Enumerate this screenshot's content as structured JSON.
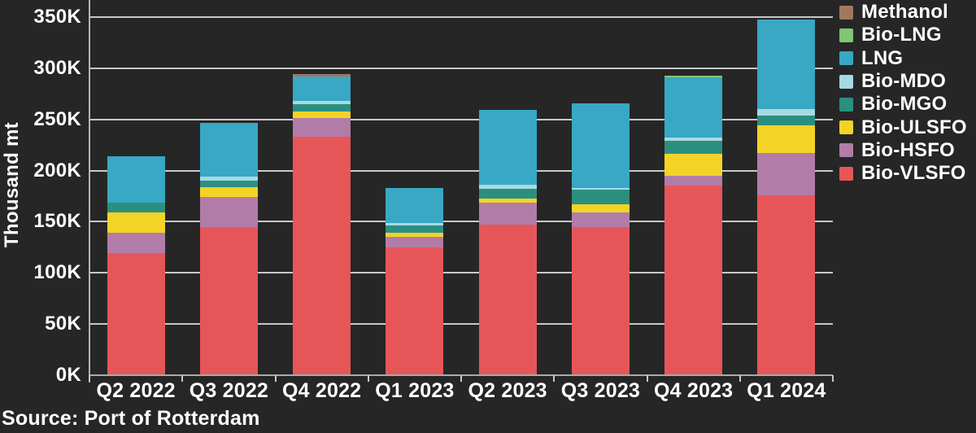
{
  "page": {
    "background": "#262626",
    "text_color": "#ffffff"
  },
  "source": {
    "label": "Source: Port of Rotterdam"
  },
  "chart_data": {
    "type": "bar",
    "stacked": true,
    "ylabel": "Thousand mt",
    "xlabel": "",
    "ylim": [
      0,
      350
    ],
    "grid": true,
    "legend_position": "right",
    "yticks": [
      {
        "value": 0,
        "label": "0K"
      },
      {
        "value": 50,
        "label": "50K"
      },
      {
        "value": 100,
        "label": "100K"
      },
      {
        "value": 150,
        "label": "150K"
      },
      {
        "value": 200,
        "label": "200K"
      },
      {
        "value": 250,
        "label": "250K"
      },
      {
        "value": 300,
        "label": "300K"
      },
      {
        "value": 350,
        "label": "350K"
      }
    ],
    "categories": [
      "Q2 2022",
      "Q3 2022",
      "Q4 2022",
      "Q1 2023",
      "Q2 2023",
      "Q3 2023",
      "Q4 2023",
      "Q1 2024"
    ],
    "series_bottom_to_top": [
      {
        "name": "Bio-VLSFO",
        "color": "#E65659",
        "values": [
          119,
          145,
          233,
          125,
          147,
          145,
          185,
          176
        ]
      },
      {
        "name": "Bio-HSFO",
        "color": "#B27CA9",
        "values": [
          20,
          29,
          18,
          10,
          22,
          14,
          10,
          41
        ]
      },
      {
        "name": "Bio-ULSFO",
        "color": "#F4D327",
        "values": [
          20,
          10,
          7,
          4,
          4,
          8,
          21,
          27
        ]
      },
      {
        "name": "Bio-MGO",
        "color": "#2B8F80",
        "values": [
          10,
          6,
          7,
          7,
          9,
          14,
          13,
          10
        ]
      },
      {
        "name": "Bio-MDO",
        "color": "#A6DAE2",
        "values": [
          0,
          4,
          3,
          3,
          4,
          2,
          3,
          6
        ]
      },
      {
        "name": "LNG",
        "color": "#38A8C4",
        "values": [
          45,
          53,
          24,
          34,
          73,
          83,
          59,
          88
        ]
      },
      {
        "name": "Bio-LNG",
        "color": "#82C573",
        "values": [
          0,
          0,
          0,
          0,
          0,
          0,
          2,
          0
        ]
      },
      {
        "name": "Methanol",
        "color": "#A07860",
        "values": [
          0,
          0,
          2,
          0,
          0,
          0,
          0,
          0
        ]
      }
    ],
    "legend_top_to_bottom": [
      "Methanol",
      "Bio-LNG",
      "LNG",
      "Bio-MDO",
      "Bio-MGO",
      "Bio-ULSFO",
      "Bio-HSFO",
      "Bio-VLSFO"
    ]
  }
}
